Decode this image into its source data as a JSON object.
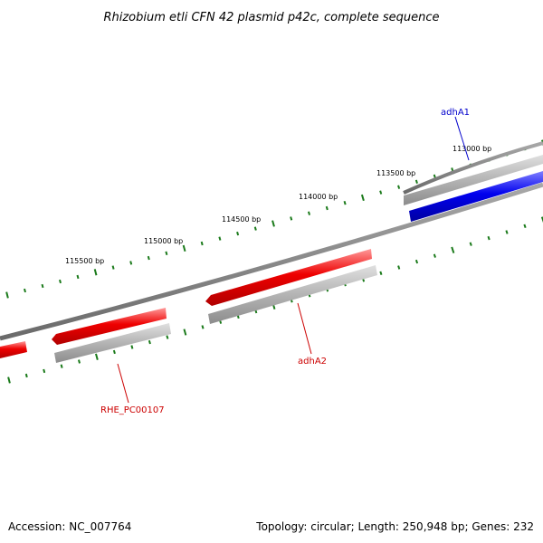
{
  "title": "Rhizobium etli CFN 42 plasmid p42c, complete sequence",
  "footer": {
    "accession": "Accession: NC_007764",
    "summary": "Topology: circular; Length: 250,948 bp; Genes: 232"
  },
  "scale_labels": [
    "113000 bp",
    "113500 bp",
    "114000 bp",
    "114500 bp",
    "115000 bp",
    "115500 bp"
  ],
  "genes": [
    {
      "name": "adhA1",
      "color": "#0000cc",
      "strand": "forward"
    },
    {
      "name": "adhA2",
      "color": "#cc0000",
      "strand": "reverse"
    },
    {
      "name": "RHE_PC00107",
      "color": "#cc0000",
      "strand": "reverse"
    }
  ],
  "colors": {
    "backbone": "#808080",
    "forward_gene": "#0000ee",
    "reverse_gene": "#ee0000",
    "cds_shadow": "#b0b0b0",
    "ticks": "#1a7a1a"
  }
}
